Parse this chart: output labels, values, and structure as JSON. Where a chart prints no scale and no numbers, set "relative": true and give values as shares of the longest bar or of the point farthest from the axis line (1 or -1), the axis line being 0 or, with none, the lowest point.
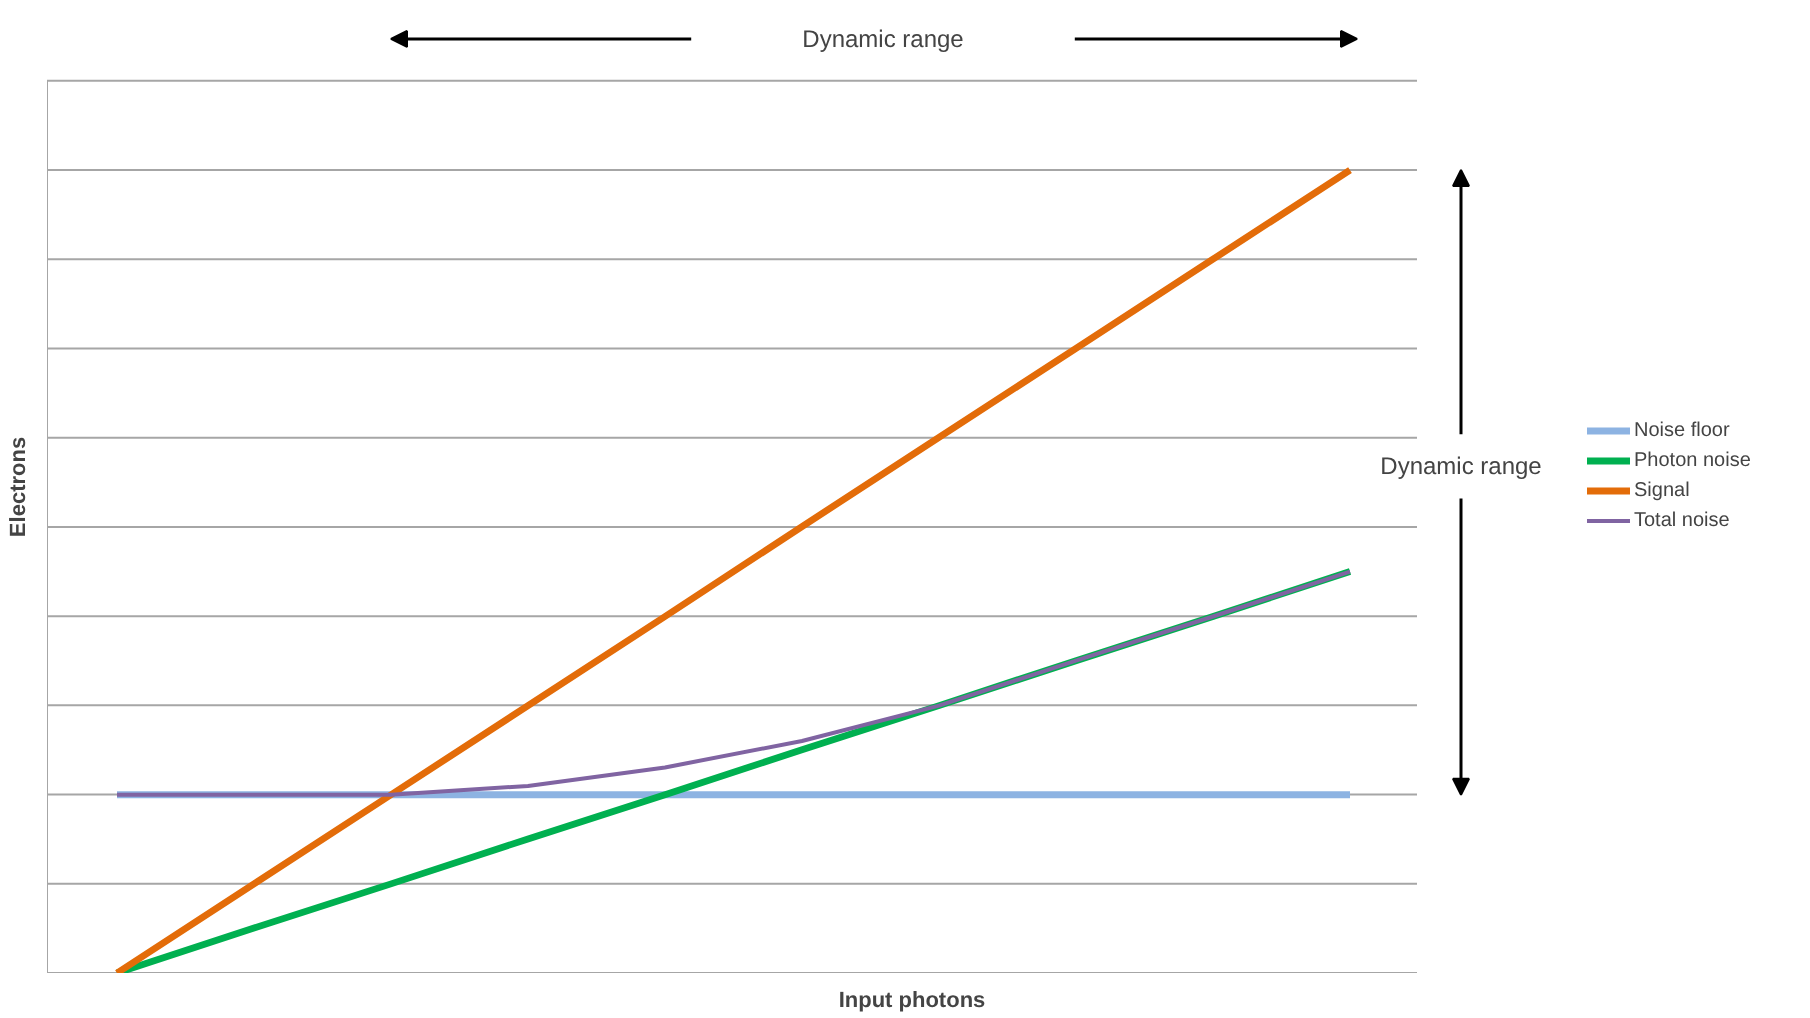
{
  "chart_data": {
    "type": "line",
    "relative": true,
    "xlabel": "Input photons",
    "ylabel": "Electrons",
    "categories": [
      null,
      null,
      null,
      null,
      null,
      null,
      null,
      null,
      null,
      null
    ],
    "series": [
      {
        "name": "Noise floor",
        "color": "#8db3e2",
        "values": [
          0.222,
          0.222,
          0.222,
          0.222,
          0.222,
          0.222,
          0.222,
          0.222,
          0.222,
          0.222
        ]
      },
      {
        "name": "Photon noise",
        "color": "#00b050",
        "values": [
          0,
          0.056,
          0.111,
          0.167,
          0.222,
          0.278,
          0.333,
          0.389,
          0.444,
          0.5
        ]
      },
      {
        "name": "Signal",
        "color": "#e36c09",
        "values": [
          0,
          0.111,
          0.222,
          0.333,
          0.444,
          0.556,
          0.667,
          0.778,
          0.889,
          1
        ]
      },
      {
        "name": "Total noise",
        "color": "#8064a2",
        "values": [
          0.222,
          0.222,
          0.222,
          0.233,
          0.256,
          0.289,
          0.333,
          0.389,
          0.444,
          0.5
        ]
      }
    ],
    "annotations": [
      "Dynamic range",
      "Dynamic range"
    ],
    "grid": "y",
    "legend": "right",
    "tick_labels": false,
    "marker": "none",
    "line_style": "solid"
  }
}
